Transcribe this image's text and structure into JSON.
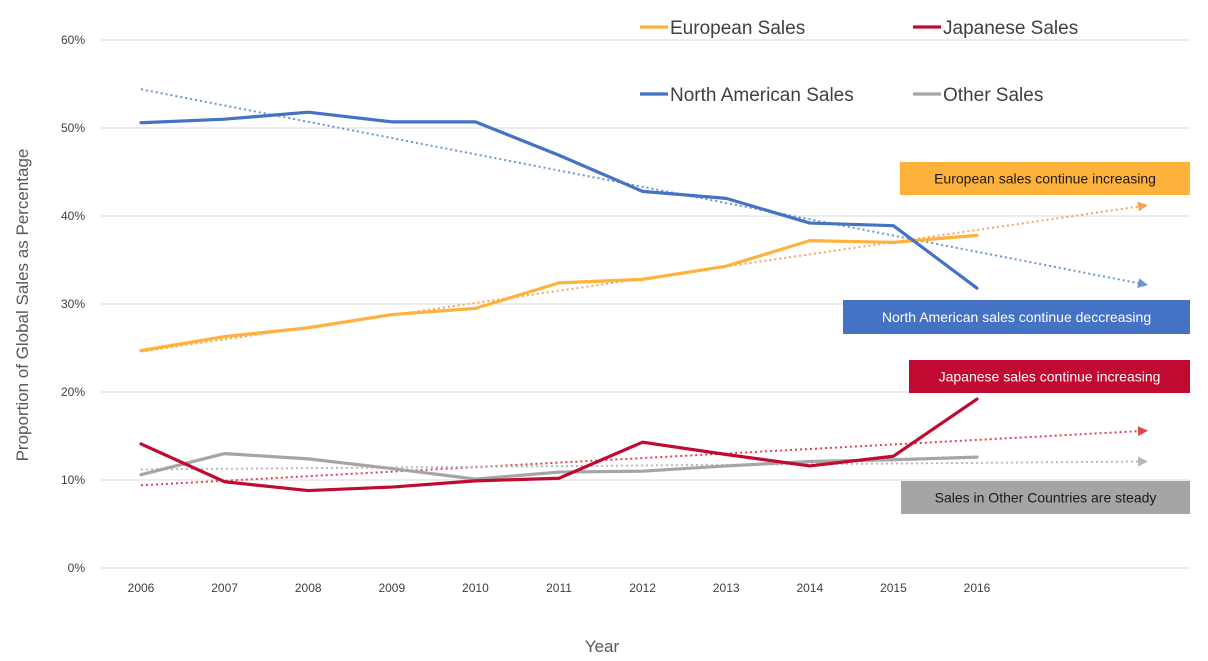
{
  "chart_data": {
    "type": "line",
    "title": "",
    "xlabel": "Year",
    "ylabel": "Proportion of Global Sales as Percentage",
    "x": [
      "2006",
      "2007",
      "2008",
      "2009",
      "2010",
      "2011",
      "2012",
      "2013",
      "2014",
      "2015",
      "2016"
    ],
    "yticks": [
      "0%",
      "10%",
      "20%",
      "30%",
      "40%",
      "50%",
      "60%"
    ],
    "ylim": [
      0,
      60
    ],
    "grid": true,
    "legend_position": "top",
    "series": [
      {
        "name": "European Sales",
        "color": "#FFB23B",
        "values": [
          24.7,
          26.3,
          27.3,
          28.8,
          29.5,
          32.4,
          32.8,
          34.3,
          37.2,
          37.0,
          37.8
        ]
      },
      {
        "name": "Japanese Sales",
        "color": "#C00A32",
        "values": [
          14.1,
          9.8,
          8.8,
          9.2,
          9.9,
          10.2,
          14.3,
          12.9,
          11.6,
          12.7,
          19.2
        ]
      },
      {
        "name": "North American Sales",
        "color": "#4472C4",
        "values": [
          50.6,
          51.0,
          51.8,
          50.7,
          50.7,
          46.9,
          42.8,
          42.0,
          39.2,
          38.9,
          31.8
        ]
      },
      {
        "name": "Other Sales",
        "color": "#A5A5A5",
        "values": [
          10.6,
          13.0,
          12.4,
          11.3,
          10.1,
          10.9,
          11.0,
          11.6,
          12.1,
          12.3,
          12.6
        ]
      }
    ],
    "trendlines": [
      {
        "series": "European Sales",
        "color": "#F4A460",
        "start": 24.6,
        "end": 41.2
      },
      {
        "series": "Japanese Sales",
        "color": "#E0454D",
        "start": 9.4,
        "end": 15.6
      },
      {
        "series": "North American Sales",
        "color": "#6A94D4",
        "start": 54.4,
        "end": 32.2
      },
      {
        "series": "Other Sales",
        "color": "#B8B8B8",
        "start": 11.2,
        "end": 12.1
      }
    ],
    "annotations": [
      {
        "text": "European sales continue increasing",
        "bg": "#FFB23B",
        "dark_text": true
      },
      {
        "text": "North American sales continue deccreasing",
        "bg": "#4472C4",
        "dark_text": false
      },
      {
        "text": "Japanese sales continue increasing",
        "bg": "#C00A32",
        "dark_text": false
      },
      {
        "text": "Sales in Other Countries are steady",
        "bg": "#A5A5A5",
        "dark_text": true
      }
    ]
  }
}
